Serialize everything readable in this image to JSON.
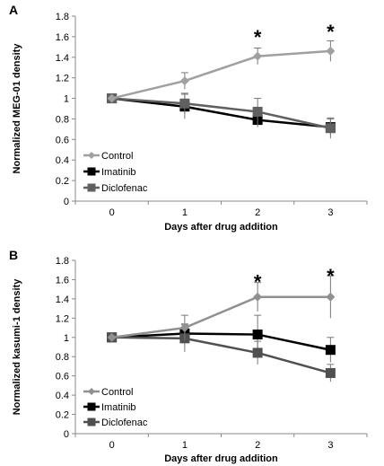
{
  "chart_data": [
    {
      "type": "line",
      "panel_label": "A",
      "xlabel": "Days after drug addition",
      "ylabel": "Normalized MEG-01 density",
      "x": [
        0,
        1,
        2,
        3
      ],
      "xlim": [
        -0.5,
        3.5
      ],
      "ylim": [
        0,
        1.8
      ],
      "yticks": [
        0,
        0.2,
        0.4,
        0.6,
        0.8,
        1,
        1.2,
        1.4,
        1.6,
        1.8
      ],
      "ytick_labels": [
        "0",
        "0.2",
        "0.4",
        "0.6",
        "0.8",
        "1",
        "1.2",
        "1.4",
        "1.6",
        "1.8"
      ],
      "xtick_labels": [
        "0",
        "1",
        "2",
        "3"
      ],
      "grid": false,
      "legend": "bottom-left",
      "series": [
        {
          "name": "Control",
          "marker": "diamond",
          "color": "#a0a0a0",
          "values": [
            1.0,
            1.17,
            1.41,
            1.46
          ],
          "errors": [
            0,
            0.08,
            0.08,
            0.1
          ]
        },
        {
          "name": "Imatinib",
          "marker": "square",
          "color": "#000000",
          "values": [
            1.0,
            0.92,
            0.79,
            0.72
          ],
          "errors": [
            0,
            0.12,
            0.07,
            0.08
          ]
        },
        {
          "name": "Diclofenac",
          "marker": "square",
          "color": "#606060",
          "values": [
            1.0,
            0.95,
            0.87,
            0.71
          ],
          "errors": [
            0,
            0.1,
            0.13,
            0.1
          ]
        }
      ],
      "annotations": [
        {
          "text": "*",
          "x": 2,
          "y": 1.6
        },
        {
          "text": "*",
          "x": 3,
          "y": 1.65
        }
      ]
    },
    {
      "type": "line",
      "panel_label": "B",
      "xlabel": "Days after drug addition",
      "ylabel": "Normalized kasumi-1 density",
      "x": [
        0,
        1,
        2,
        3
      ],
      "xlim": [
        -0.5,
        3.5
      ],
      "ylim": [
        0,
        1.8
      ],
      "yticks": [
        0,
        0.2,
        0.4,
        0.6,
        0.8,
        1,
        1.2,
        1.4,
        1.6,
        1.8
      ],
      "ytick_labels": [
        "0",
        "0.2",
        "0.4",
        "0.6",
        "0.8",
        "1",
        "1.2",
        "1.4",
        "1.6",
        "1.8"
      ],
      "xtick_labels": [
        "0",
        "1",
        "2",
        "3"
      ],
      "grid": false,
      "legend": "bottom-left",
      "series": [
        {
          "name": "Control",
          "marker": "diamond",
          "color": "#909090",
          "values": [
            1.0,
            1.1,
            1.42,
            1.42
          ],
          "errors": [
            0,
            0.13,
            0.15,
            0.22
          ]
        },
        {
          "name": "Imatinib",
          "marker": "square",
          "color": "#000000",
          "values": [
            1.0,
            1.04,
            1.03,
            0.87
          ],
          "errors": [
            0,
            0.1,
            0.2,
            0.13
          ]
        },
        {
          "name": "Diclofenac",
          "marker": "square",
          "color": "#505050",
          "values": [
            1.0,
            0.99,
            0.84,
            0.63
          ],
          "errors": [
            0,
            0.14,
            0.12,
            0.09
          ]
        }
      ],
      "annotations": [
        {
          "text": "*",
          "x": 2,
          "y": 1.58
        },
        {
          "text": "*",
          "x": 3,
          "y": 1.64
        }
      ]
    }
  ]
}
